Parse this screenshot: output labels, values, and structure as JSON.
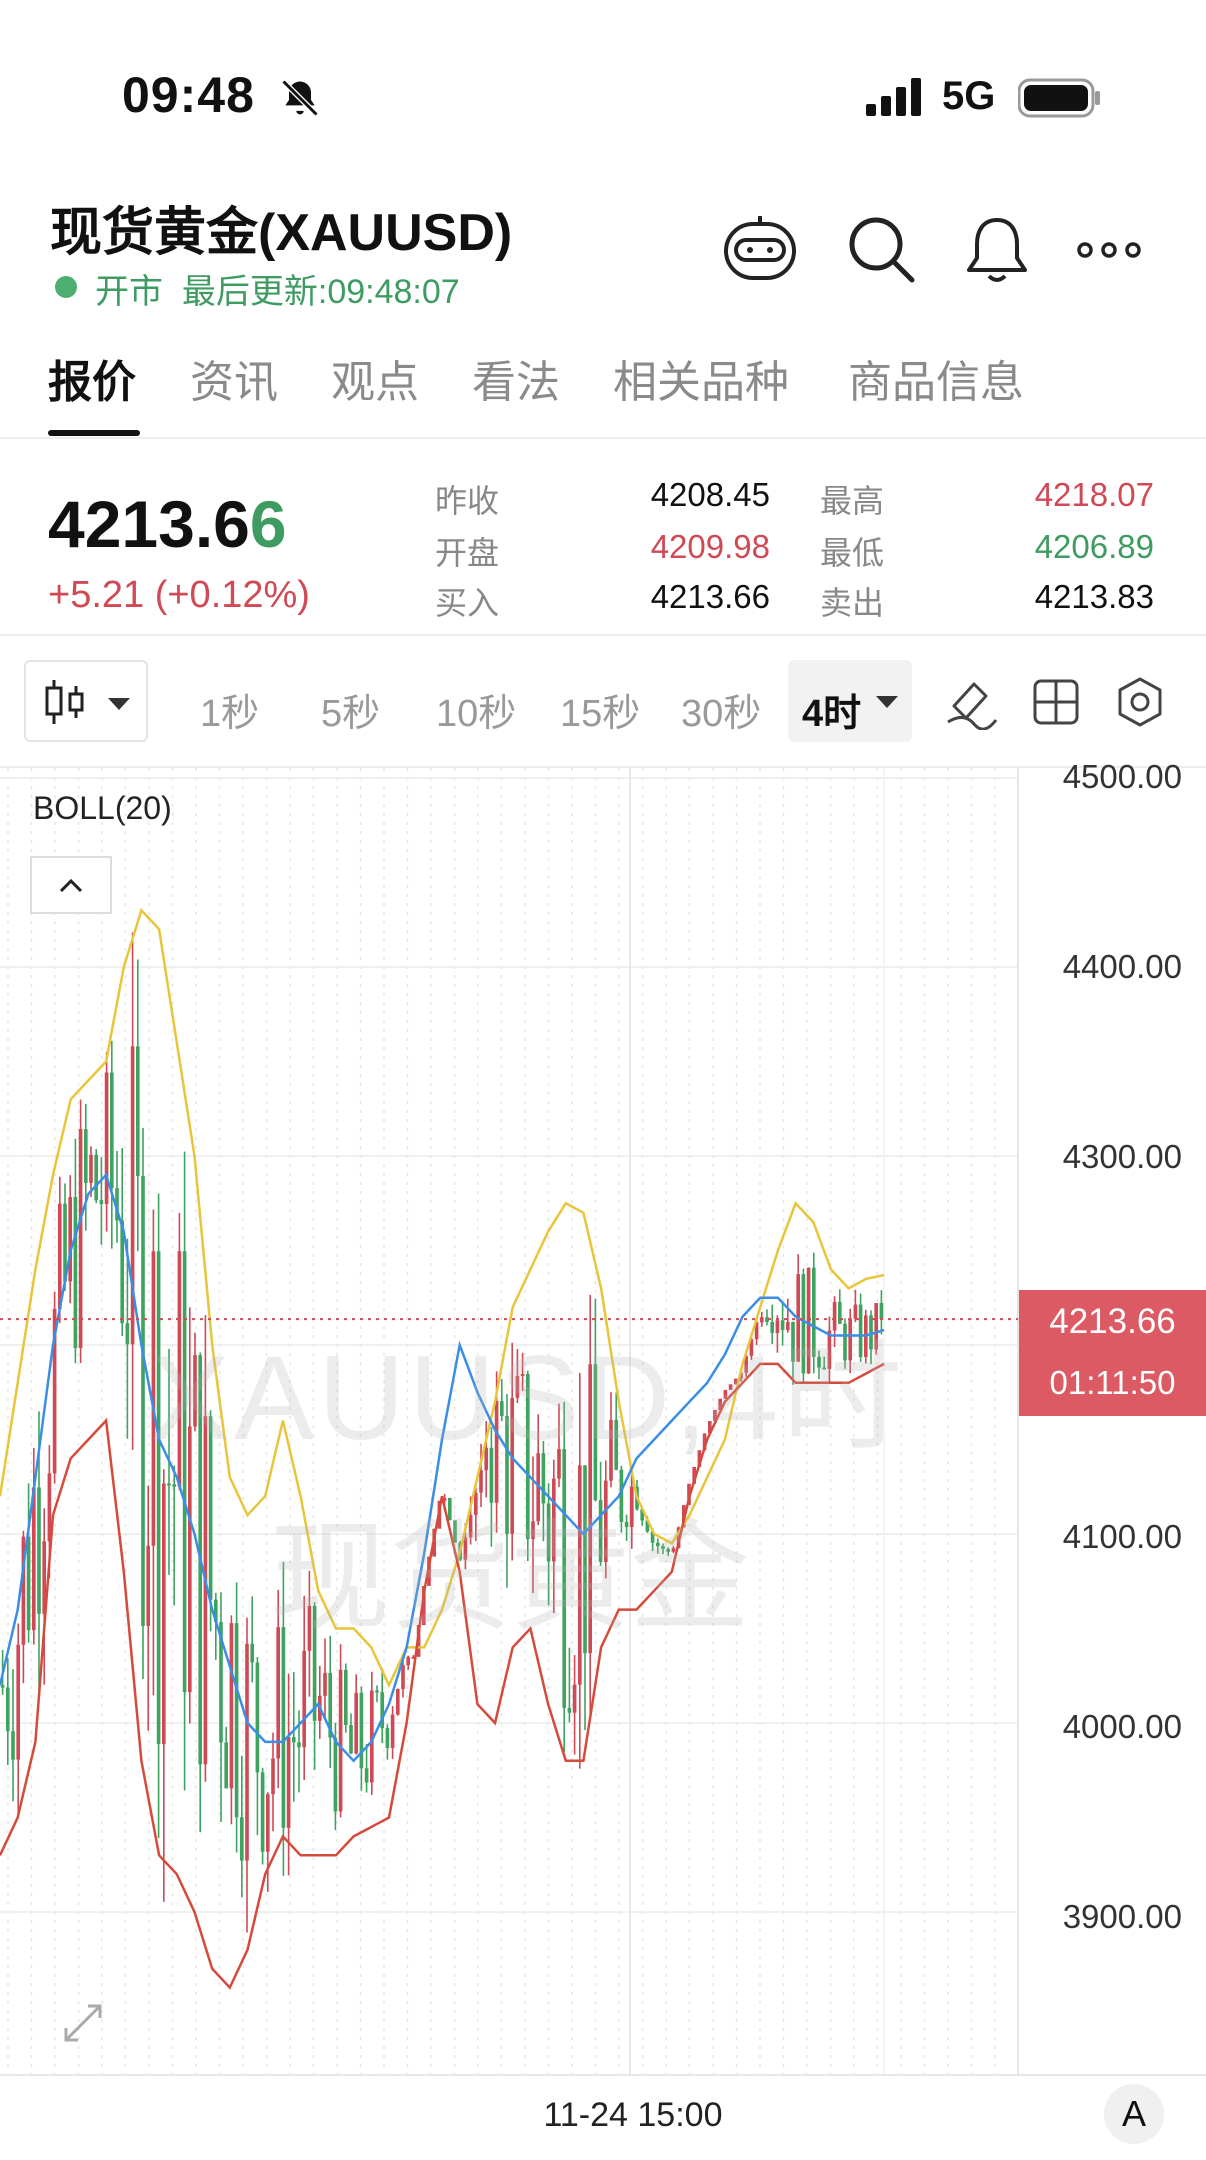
{
  "status_bar": {
    "time": "09:48",
    "network": "5G"
  },
  "header": {
    "title": "现货黄金(XAUUSD)",
    "market_status": "开市",
    "last_update": "最后更新:09:48:07"
  },
  "tabs": [
    "报价",
    "资讯",
    "观点",
    "看法",
    "相关品种",
    "商品信息"
  ],
  "quote": {
    "price_main": "4213.6",
    "price_last_digit": "6",
    "change": "+5.21 (+0.12%)",
    "prev_close_label": "昨收",
    "prev_close": "4208.45",
    "open_label": "开盘",
    "open": "4209.98",
    "bid_label": "买入",
    "bid": "4213.66",
    "high_label": "最高",
    "high": "4218.07",
    "low_label": "最低",
    "low": "4206.89",
    "ask_label": "卖出",
    "ask": "4213.83"
  },
  "intervals": [
    "1秒",
    "5秒",
    "10秒",
    "15秒",
    "30秒"
  ],
  "active_interval": "4时",
  "chart": {
    "indicator": "BOLL(20)",
    "watermark_symbol": "XAUUSD,4时",
    "watermark_name": "现货黄金",
    "y_ticks": [
      "4500.00",
      "4400.00",
      "4300.00",
      "4100.00",
      "4000.00",
      "3900.00"
    ],
    "last_price": "4213.66",
    "countdown": "01:11:50",
    "x_label": "11-24 15:00",
    "axis_mode": "A"
  },
  "chart_data": {
    "type": "candlestick",
    "ylim": [
      3820,
      4500
    ],
    "y_ticks": [
      3900,
      4000,
      4100,
      4200,
      4300,
      4400,
      4500
    ],
    "last_price": 4213.66,
    "colors": {
      "up": "#d04a55",
      "down": "#3ea35f",
      "upper_band": "#e8c53a",
      "middle_band": "#3a8ee6",
      "lower_band": "#d64a3c"
    },
    "boll_upper": [
      4120,
      4180,
      4240,
      4290,
      4330,
      4340,
      4350,
      4400,
      4430,
      4420,
      4360,
      4300,
      4200,
      4130,
      4110,
      4120,
      4160,
      4120,
      4070,
      4050,
      4050,
      4040,
      4020,
      4040,
      4040,
      4060,
      4090,
      4130,
      4170,
      4220,
      4240,
      4260,
      4275,
      4270,
      4230,
      4170,
      4120,
      4100,
      4095,
      4110,
      4130,
      4150,
      4190,
      4220,
      4250,
      4275,
      4265,
      4240,
      4230,
      4235,
      4237
    ],
    "boll_middle": [
      4020,
      4060,
      4130,
      4200,
      4250,
      4280,
      4290,
      4260,
      4200,
      4150,
      4130,
      4100,
      4060,
      4030,
      4000,
      3990,
      3990,
      4000,
      4010,
      3990,
      3980,
      3990,
      4010,
      4040,
      4090,
      4150,
      4200,
      4175,
      4155,
      4140,
      4130,
      4120,
      4110,
      4100,
      4110,
      4120,
      4140,
      4150,
      4160,
      4170,
      4180,
      4195,
      4215,
      4225,
      4225,
      4215,
      4210,
      4205,
      4205,
      4205,
      4208
    ],
    "boll_lower": [
      3930,
      3950,
      3990,
      4110,
      4140,
      4150,
      4160,
      4080,
      3980,
      3930,
      3920,
      3900,
      3870,
      3860,
      3880,
      3920,
      3940,
      3930,
      3930,
      3930,
      3940,
      3945,
      3950,
      4000,
      4070,
      4120,
      4080,
      4010,
      4000,
      4040,
      4050,
      4010,
      3980,
      3980,
      4040,
      4060,
      4060,
      4070,
      4080,
      4120,
      4150,
      4170,
      4180,
      4190,
      4190,
      4180,
      4180,
      4180,
      4180,
      4185,
      4190
    ]
  }
}
